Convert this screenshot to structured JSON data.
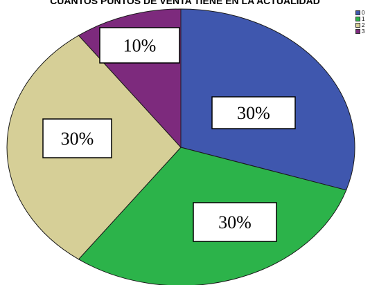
{
  "chart_data": {
    "type": "pie",
    "title": "CUANTOS PUNTOS DE VENTA TIENE EN LA ACTUALIDAD",
    "categories": [
      "0",
      "1",
      "2",
      "3"
    ],
    "values": [
      30,
      30,
      30,
      10
    ],
    "data_labels": [
      "30%",
      "30%",
      "30%",
      "10%"
    ],
    "colors": [
      "#3f57ae",
      "#2cb34a",
      "#d6cf97",
      "#7d2a7d"
    ],
    "legend_position": "top-right",
    "start_angle": "top",
    "direction": "clockwise"
  }
}
